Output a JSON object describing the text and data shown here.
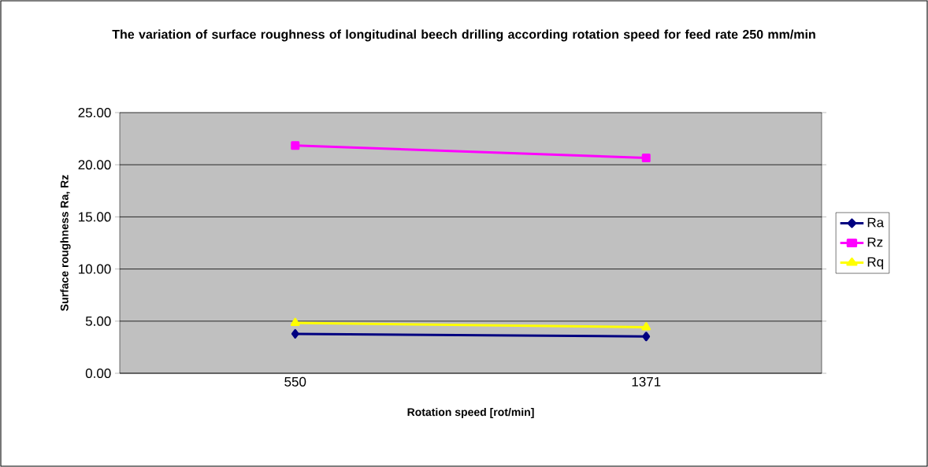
{
  "chart_data": {
    "type": "line",
    "title": "The variation of surface roughness of longitudinal beech drilling according rotation speed for feed rate 250 mm/min",
    "xlabel": "Rotation speed [rot/min]",
    "ylabel": "Surface roughness Ra, Rz",
    "categories": [
      "550",
      "1371"
    ],
    "series": [
      {
        "name": "Ra",
        "color": "#000080",
        "marker": "diamond",
        "values": [
          3.78,
          3.53
        ]
      },
      {
        "name": "Rz",
        "color": "#ff00ff",
        "marker": "square",
        "values": [
          21.85,
          20.65
        ]
      },
      {
        "name": "Rq",
        "color": "#ffff00",
        "marker": "triangle",
        "values": [
          4.83,
          4.42
        ]
      }
    ],
    "ylim": [
      0,
      25
    ],
    "yticks": [
      {
        "value": 0,
        "label": "0.00"
      },
      {
        "value": 5,
        "label": "5.00"
      },
      {
        "value": 10,
        "label": "10.00"
      },
      {
        "value": 15,
        "label": "15.00"
      },
      {
        "value": 20,
        "label": "20.00"
      },
      {
        "value": 25,
        "label": "25.00"
      }
    ],
    "grid": "y",
    "legend": "right"
  }
}
